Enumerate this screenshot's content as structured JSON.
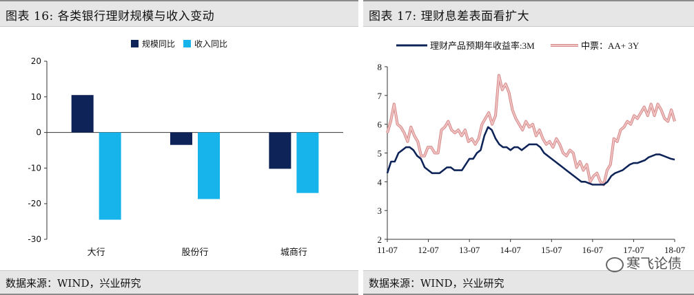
{
  "left": {
    "title": "图表 16:  各类银行理财规模与收入变动",
    "source": "数据来源：WIND，兴业研究"
  },
  "right": {
    "title": "图表 17:  理财息差表面看扩大",
    "source": "数据来源：WIND，兴业研究"
  },
  "watermark": "寒飞论债",
  "colors": {
    "navy": "#0e2358",
    "cyan": "#16b4ea",
    "pink_fill": "#f2c4c4",
    "pink_edge": "#d38a8a"
  },
  "chart_data": [
    {
      "type": "bar",
      "categories": [
        "大行",
        "股份行",
        "城商行"
      ],
      "series": [
        {
          "name": "规模同比",
          "values": [
            10.5,
            -3.5,
            -10.2
          ]
        },
        {
          "name": "收入同比",
          "values": [
            -24.5,
            -18.7,
            -17.0
          ]
        }
      ],
      "ylim": [
        -30,
        20
      ],
      "yticks": [
        -30,
        -20,
        -10,
        0,
        10,
        20
      ],
      "legend": "top-center"
    },
    {
      "type": "line",
      "x_ticks": [
        "11-07",
        "12-07",
        "13-07",
        "14-07",
        "15-07",
        "16-07",
        "17-07",
        "18-07"
      ],
      "ylim": [
        2,
        8
      ],
      "yticks": [
        2,
        3,
        4,
        5,
        6,
        7,
        8
      ],
      "legend": "top",
      "series": [
        {
          "name": "理财产品预期年收益率:3M",
          "values": [
            4.3,
            4.7,
            4.7,
            5.0,
            5.1,
            5.2,
            5.2,
            5.1,
            4.9,
            4.8,
            4.5,
            4.4,
            4.3,
            4.3,
            4.3,
            4.4,
            4.5,
            4.5,
            4.4,
            4.4,
            4.4,
            4.6,
            4.8,
            4.8,
            5.0,
            5.1,
            5.6,
            5.9,
            5.8,
            5.5,
            5.3,
            5.2,
            5.2,
            5.1,
            5.2,
            5.2,
            5.1,
            5.2,
            5.3,
            5.3,
            5.3,
            5.2,
            5.0,
            4.9,
            4.8,
            4.7,
            4.6,
            4.5,
            4.4,
            4.3,
            4.2,
            4.1,
            4.0,
            4.0,
            3.95,
            3.9,
            3.9,
            3.9,
            3.9,
            4.0,
            4.2,
            4.3,
            4.35,
            4.4,
            4.5,
            4.6,
            4.65,
            4.65,
            4.7,
            4.75,
            4.85,
            4.9,
            4.95,
            4.95,
            4.9,
            4.85,
            4.8,
            4.77
          ]
        },
        {
          "name": "中票：AA+ 3Y",
          "values": [
            5.7,
            6.1,
            6.7,
            6.0,
            5.9,
            5.7,
            5.4,
            5.9,
            5.6,
            5.4,
            4.9,
            4.9,
            5.2,
            5.2,
            5.0,
            5.0,
            5.8,
            5.9,
            6.1,
            5.8,
            5.7,
            5.8,
            5.6,
            5.8,
            5.4,
            5.5,
            5.3,
            5.5,
            6.0,
            6.2,
            6.4,
            6.0,
            6.3,
            7.7,
            7.2,
            7.4,
            7.1,
            6.5,
            6.2,
            6.0,
            5.8,
            6.1,
            5.9,
            6.0,
            5.6,
            5.8,
            5.5,
            5.3,
            5.4,
            5.2,
            5.5,
            5.3,
            5.0,
            4.9,
            5.1,
            5.0,
            4.5,
            4.7,
            4.4,
            4.6,
            4.0,
            4.2,
            4.3,
            4.0,
            3.9,
            4.4,
            4.6,
            5.5,
            5.4,
            5.8,
            5.9,
            6.1,
            6.0,
            6.3,
            6.2,
            6.4,
            6.6,
            6.3,
            6.7,
            6.3,
            6.7,
            6.5,
            6.2,
            6.1,
            6.5,
            6.1
          ]
        }
      ]
    }
  ]
}
